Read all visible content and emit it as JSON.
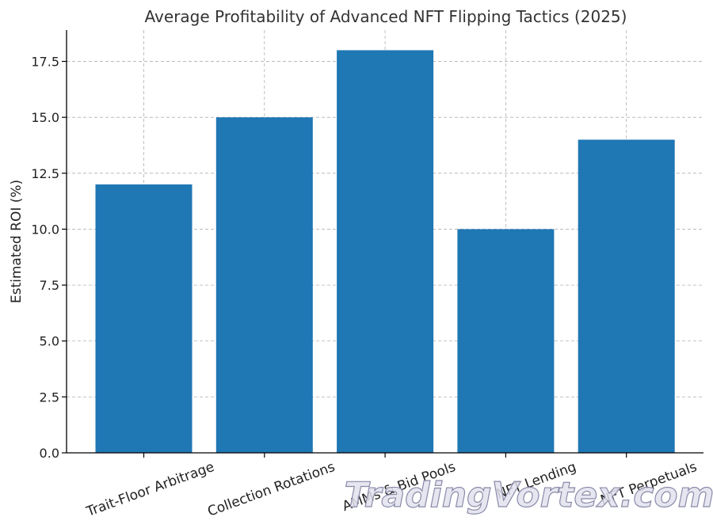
{
  "chart_data": {
    "type": "bar",
    "title": "Average Profitability of Advanced NFT Flipping Tactics (2025)",
    "xlabel": "",
    "ylabel": "Estimated ROI (%)",
    "categories": [
      "Trait-Floor Arbitrage",
      "Collection Rotations",
      "AMMs & Bid Pools",
      "NFT Lending",
      "NFT Perpetuals"
    ],
    "values": [
      12,
      15,
      18,
      10,
      14
    ],
    "ylim": [
      0,
      18.9
    ],
    "yticks": [
      "0.0",
      "2.5",
      "5.0",
      "7.5",
      "10.0",
      "12.5",
      "15.0",
      "17.5"
    ],
    "grid": true,
    "bar_color": "#1f77b4"
  },
  "watermark": "TradingVortex.com"
}
